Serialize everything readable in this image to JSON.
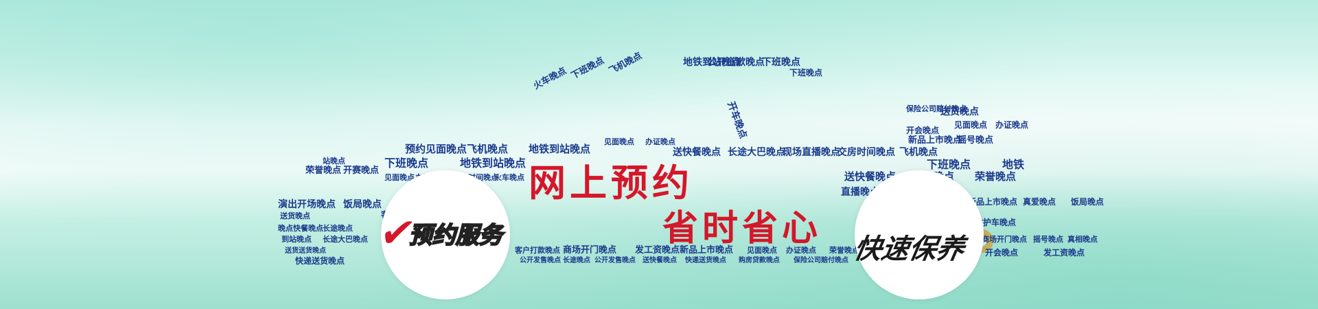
{
  "banner": {
    "headline_1": "网上预约",
    "headline_2": "省时省心",
    "badge_left": {
      "icon": "checkmark-swoosh-icon",
      "label": "预约服务"
    },
    "badge_right": {
      "label": "快速保养",
      "icon": "gear-icon"
    },
    "colors": {
      "headline": "#d4172a",
      "wordcloud": "#1b3a8c",
      "badge_right_accent": "#f39a1e",
      "background_top": "#b7ebe0",
      "background_bottom": "#9fe0cf"
    }
  },
  "word_cloud": [
    "公开道歉晚点",
    "地铁到站晚点",
    "下班晚点",
    "开车晚点",
    "下班晚点",
    "火车晚点",
    "下班晚点",
    "飞机晚点",
    "预约见面晚点",
    "飞机晚点",
    "地铁到站晚点",
    "见面晚点",
    "办证晚点",
    "下班晚点",
    "地铁到站晚点",
    "送快餐晚点",
    "长途大巴晚点",
    "现场直播晚点",
    "交房时间晚点",
    "飞机晚点",
    "站晚点",
    "荣誉晚点",
    "开赛晚点",
    "见面晚点",
    "办证晚点",
    "交房时间晚点",
    "火车晚点",
    "下班晚点",
    "地铁",
    "送快餐晚点",
    "火车晚点",
    "荣誉晚点",
    "演出开场晚点",
    "饭局晚点",
    "客户打款晚点",
    "送货晚点",
    "晚点快餐晚点",
    "长途晚点",
    "直播晚点",
    "新品上市晚点",
    "真爱晚点",
    "饭局晚点",
    "救护车晚点",
    "到站晚点",
    "长途大巴晚点",
    "送货送货晚点",
    "快递送货晚点",
    "客户打款晚点",
    "商场开门晚点",
    "发工资晚点",
    "新品上市晚点",
    "见面晚点",
    "办证晚点",
    "荣誉晚点",
    "公开发售晚点",
    "长途晚点",
    "公开发售晚点",
    "送快餐晚点",
    "快递送货晚点",
    "购房贷款晚点",
    "保险公司赔付晚点",
    "见面晚点",
    "办证晚点",
    "保险公司赔付晚点",
    "送货晚点",
    "新品上市晚点",
    "摇号晚点",
    "开会晚点",
    "商场开门晚点",
    "摇号晚点",
    "真相晚点",
    "开会晚点",
    "发工资晚点"
  ]
}
